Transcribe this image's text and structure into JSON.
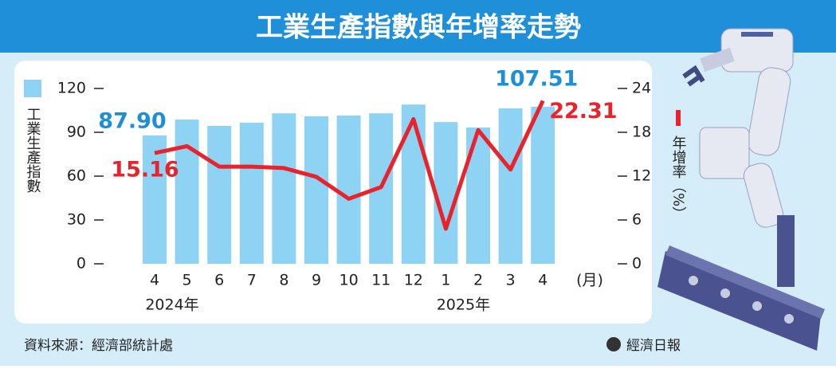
{
  "chart_data": {
    "type": "bar",
    "title": "工業生產指數與年增率走勢",
    "categories": [
      "4",
      "5",
      "6",
      "7",
      "8",
      "9",
      "10",
      "11",
      "12",
      "1",
      "2",
      "3",
      "4"
    ],
    "x_label": "(月)",
    "year_labels": [
      "2024年",
      "2025年"
    ],
    "series": [
      {
        "name": "工業生產指數",
        "type": "bar",
        "color": "#8ed3f4",
        "label_color": "#1d8fd6",
        "values": [
          87.9,
          98.7,
          94.4,
          96.6,
          103,
          101,
          101.5,
          103,
          109,
          97,
          93.3,
          106.4,
          107.51
        ],
        "value_labels": [
          "87.90",
          null,
          null,
          null,
          null,
          null,
          null,
          null,
          null,
          null,
          null,
          null,
          "107.51"
        ]
      },
      {
        "name": "年增率（%）",
        "type": "line",
        "axis": "y2",
        "color": "#e8232b",
        "label_color": "#e8232b",
        "values": [
          15.16,
          16.1,
          13.3,
          13.3,
          13.1,
          11.9,
          8.9,
          10.5,
          19.8,
          4.8,
          18.3,
          12.9,
          22.31
        ],
        "value_labels": [
          "15.16",
          null,
          null,
          null,
          null,
          null,
          null,
          null,
          null,
          null,
          null,
          null,
          "22.31"
        ]
      }
    ],
    "ylim": [
      0,
      120
    ],
    "yticks": [
      0,
      30,
      60,
      90,
      120
    ],
    "y2lim": [
      0,
      24
    ],
    "y2ticks": [
      0,
      6,
      12,
      18,
      24
    ],
    "source": "資料來源：經濟部統計處",
    "publisher": "經濟日報"
  }
}
